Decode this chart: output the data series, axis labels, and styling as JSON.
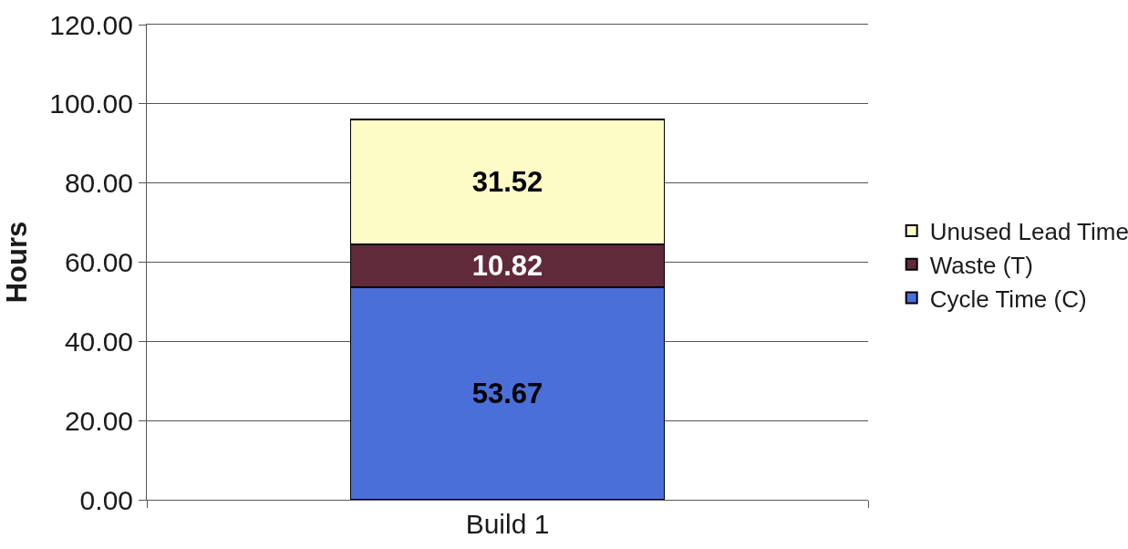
{
  "chart_data": {
    "type": "bar",
    "ylabel": "Hours",
    "categories": [
      "Build 1"
    ],
    "stacked": true,
    "series": [
      {
        "name": "Cycle Time (C)",
        "color": "#4b6fd8",
        "values": [
          53.67
        ]
      },
      {
        "name": "Waste (T)",
        "color": "#612a3b",
        "values": [
          10.82
        ]
      },
      {
        "name": "Unused Lead Time",
        "color": "#fefcc6",
        "values": [
          31.52
        ]
      }
    ],
    "ylim": [
      0,
      120
    ],
    "yticks": [
      {
        "value": 0,
        "label": "0.00"
      },
      {
        "value": 20,
        "label": "20.00"
      },
      {
        "value": 40,
        "label": "40.00"
      },
      {
        "value": 60,
        "label": "60.00"
      },
      {
        "value": 80,
        "label": "80.00"
      },
      {
        "value": 100,
        "label": "100.00"
      },
      {
        "value": 120,
        "label": "120.00"
      }
    ],
    "grid": "y",
    "legend": "right",
    "data_labels": true
  }
}
